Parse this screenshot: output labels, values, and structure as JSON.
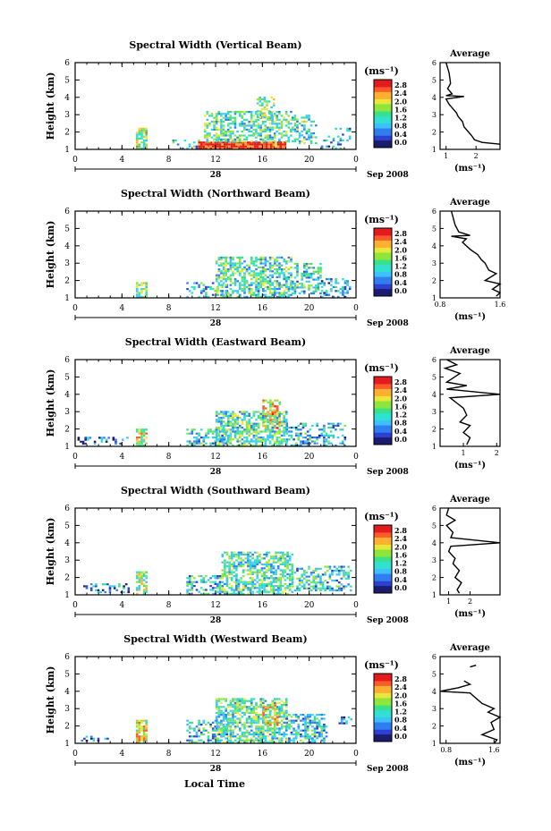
{
  "figure": {
    "xlabel": "Local Time",
    "date_suffix": "Sep 2008",
    "day_label": "28",
    "ylabel": "Height (km)",
    "unit": "(ms⁻¹)",
    "avg_title": "Average"
  },
  "colormap": [
    "#1a1a6e",
    "#2c3fd0",
    "#2f7ff0",
    "#3cc0ff",
    "#30e0d0",
    "#39e28a",
    "#8fe63a",
    "#e8e83a",
    "#ffb030",
    "#ff5a2a",
    "#e41a1c"
  ],
  "chart_data": [
    {
      "type": "heatmap",
      "title": "Spectral Width (Vertical Beam)",
      "x_ticks": [
        "0",
        "4",
        "8",
        "12",
        "16",
        "20",
        "0"
      ],
      "y_ticks": [
        "1",
        "2",
        "3",
        "4",
        "5",
        "6"
      ],
      "xlim": [
        0,
        24
      ],
      "ylim": [
        1,
        6
      ],
      "colorbar_ticks": [
        "0.0",
        "0.4",
        "0.8",
        "1.2",
        "1.6",
        "2.0",
        "2.4",
        "2.8"
      ],
      "colorbar_range": [
        0,
        2.8
      ],
      "blobs": [
        {
          "x0": 5.2,
          "x1": 6.0,
          "y0": 1.0,
          "y1": 2.2,
          "density": 0.8,
          "mean": 1.6
        },
        {
          "x0": 8.3,
          "x1": 12.5,
          "y0": 1.0,
          "y1": 1.5,
          "density": 0.25,
          "mean": 1.0
        },
        {
          "x0": 10.5,
          "x1": 18.0,
          "y0": 1.0,
          "y1": 1.45,
          "density": 1.0,
          "mean": 2.7
        },
        {
          "x0": 11.0,
          "x1": 18.5,
          "y0": 1.4,
          "y1": 3.2,
          "density": 0.55,
          "mean": 1.3
        },
        {
          "x0": 15.5,
          "x1": 17.0,
          "y0": 2.8,
          "y1": 4.0,
          "density": 0.35,
          "mean": 1.4
        },
        {
          "x0": 18.5,
          "x1": 20.5,
          "y0": 1.3,
          "y1": 2.9,
          "density": 0.45,
          "mean": 1.2
        },
        {
          "x0": 21.0,
          "x1": 23.5,
          "y0": 1.0,
          "y1": 2.2,
          "density": 0.2,
          "mean": 0.9
        }
      ],
      "avg": {
        "x_ticks": [
          "1",
          "2"
        ],
        "xlim": [
          0.8,
          2.8
        ],
        "points": [
          [
            1.0,
            6.0
          ],
          [
            1.1,
            5.4
          ],
          [
            1.15,
            4.8
          ],
          [
            1.05,
            4.5
          ],
          [
            1.2,
            4.2
          ],
          [
            1.0,
            4.1
          ],
          [
            1.6,
            4.05
          ],
          [
            1.0,
            3.9
          ],
          [
            1.1,
            3.6
          ],
          [
            1.2,
            3.4
          ],
          [
            1.35,
            3.1
          ],
          [
            1.4,
            2.9
          ],
          [
            1.55,
            2.6
          ],
          [
            1.6,
            2.3
          ],
          [
            1.7,
            2.1
          ],
          [
            1.85,
            1.8
          ],
          [
            1.95,
            1.55
          ],
          [
            2.2,
            1.4
          ],
          [
            2.8,
            1.3
          ]
        ]
      }
    },
    {
      "type": "heatmap",
      "title": "Spectral Width (Northward Beam)",
      "x_ticks": [
        "0",
        "4",
        "8",
        "12",
        "16",
        "20",
        "0"
      ],
      "y_ticks": [
        "1",
        "2",
        "3",
        "4",
        "5",
        "6"
      ],
      "xlim": [
        0,
        24
      ],
      "ylim": [
        1,
        6
      ],
      "colorbar_ticks": [
        "0.0",
        "0.4",
        "0.8",
        "1.2",
        "1.6",
        "2.0",
        "2.4",
        "2.8"
      ],
      "colorbar_range": [
        0,
        2.8
      ],
      "blobs": [
        {
          "x0": 5.2,
          "x1": 6.0,
          "y0": 1.0,
          "y1": 1.9,
          "density": 0.7,
          "mean": 1.4
        },
        {
          "x0": 9.5,
          "x1": 13.0,
          "y0": 1.0,
          "y1": 1.8,
          "density": 0.35,
          "mean": 1.0
        },
        {
          "x0": 12.0,
          "x1": 18.5,
          "y0": 1.0,
          "y1": 3.3,
          "density": 0.6,
          "mean": 1.2
        },
        {
          "x0": 18.5,
          "x1": 21.0,
          "y0": 1.2,
          "y1": 3.0,
          "density": 0.5,
          "mean": 1.1
        },
        {
          "x0": 21.0,
          "x1": 23.5,
          "y0": 1.0,
          "y1": 2.1,
          "density": 0.3,
          "mean": 0.8
        }
      ],
      "avg": {
        "x_ticks": [
          "0.8",
          "1.6"
        ],
        "xlim": [
          0.8,
          1.6
        ],
        "points": [
          [
            0.95,
            6.0
          ],
          [
            1.0,
            5.2
          ],
          [
            1.05,
            4.8
          ],
          [
            1.2,
            4.6
          ],
          [
            0.95,
            4.55
          ],
          [
            1.15,
            4.4
          ],
          [
            1.1,
            4.2
          ],
          [
            1.2,
            3.8
          ],
          [
            1.3,
            3.5
          ],
          [
            1.35,
            3.2
          ],
          [
            1.4,
            3.0
          ],
          [
            1.45,
            2.6
          ],
          [
            1.55,
            2.4
          ],
          [
            1.4,
            2.0
          ],
          [
            1.6,
            1.8
          ],
          [
            1.5,
            1.5
          ],
          [
            1.6,
            1.3
          ],
          [
            1.55,
            1.1
          ]
        ]
      }
    },
    {
      "type": "heatmap",
      "title": "Spectral Width (Eastward Beam)",
      "x_ticks": [
        "0",
        "4",
        "8",
        "12",
        "16",
        "20",
        "0"
      ],
      "y_ticks": [
        "1",
        "2",
        "3",
        "4",
        "5",
        "6"
      ],
      "xlim": [
        0,
        24
      ],
      "ylim": [
        1,
        6
      ],
      "colorbar_ticks": [
        "0.0",
        "0.4",
        "0.8",
        "1.2",
        "1.6",
        "2.0",
        "2.4",
        "2.8"
      ],
      "colorbar_range": [
        0,
        2.8
      ],
      "blobs": [
        {
          "x0": 0.2,
          "x1": 4.5,
          "y0": 1.1,
          "y1": 1.5,
          "density": 0.3,
          "mean": 0.6
        },
        {
          "x0": 5.2,
          "x1": 6.0,
          "y0": 1.0,
          "y1": 2.0,
          "density": 0.75,
          "mean": 1.8
        },
        {
          "x0": 9.5,
          "x1": 13.0,
          "y0": 1.0,
          "y1": 2.0,
          "density": 0.4,
          "mean": 1.0
        },
        {
          "x0": 12.0,
          "x1": 18.0,
          "y0": 1.0,
          "y1": 3.0,
          "density": 0.65,
          "mean": 1.3
        },
        {
          "x0": 16.0,
          "x1": 17.5,
          "y0": 2.0,
          "y1": 3.6,
          "density": 0.5,
          "mean": 1.9
        },
        {
          "x0": 18.0,
          "x1": 23.0,
          "y0": 1.0,
          "y1": 2.3,
          "density": 0.4,
          "mean": 0.9
        }
      ],
      "avg": {
        "x_ticks": [
          "1",
          "2"
        ],
        "xlim": [
          0.3,
          2.1
        ],
        "points": [
          [
            0.5,
            6.0
          ],
          [
            0.8,
            5.7
          ],
          [
            0.45,
            5.5
          ],
          [
            0.9,
            5.2
          ],
          [
            0.5,
            4.7
          ],
          [
            1.1,
            4.5
          ],
          [
            0.5,
            4.3
          ],
          [
            2.1,
            4.0
          ],
          [
            0.6,
            3.8
          ],
          [
            0.8,
            3.5
          ],
          [
            1.0,
            3.2
          ],
          [
            1.1,
            2.8
          ],
          [
            0.9,
            2.4
          ],
          [
            1.2,
            2.2
          ],
          [
            1.0,
            1.8
          ],
          [
            1.2,
            1.5
          ],
          [
            1.1,
            1.1
          ]
        ]
      }
    },
    {
      "type": "heatmap",
      "title": "Spectral Width (Southward Beam)",
      "x_ticks": [
        "0",
        "4",
        "8",
        "12",
        "16",
        "20",
        "0"
      ],
      "y_ticks": [
        "1",
        "2",
        "3",
        "4",
        "5",
        "6"
      ],
      "xlim": [
        0,
        24
      ],
      "ylim": [
        1,
        6
      ],
      "colorbar_ticks": [
        "0.0",
        "0.4",
        "0.8",
        "1.2",
        "1.6",
        "2.0",
        "2.4",
        "2.8"
      ],
      "colorbar_range": [
        0,
        2.8
      ],
      "blobs": [
        {
          "x0": 0.5,
          "x1": 4.5,
          "y0": 1.1,
          "y1": 1.6,
          "density": 0.3,
          "mean": 0.7
        },
        {
          "x0": 5.2,
          "x1": 6.0,
          "y0": 1.0,
          "y1": 2.3,
          "density": 0.7,
          "mean": 1.6
        },
        {
          "x0": 9.5,
          "x1": 13.0,
          "y0": 1.0,
          "y1": 2.1,
          "density": 0.4,
          "mean": 1.0
        },
        {
          "x0": 12.5,
          "x1": 18.5,
          "y0": 1.0,
          "y1": 3.4,
          "density": 0.6,
          "mean": 1.3
        },
        {
          "x0": 18.5,
          "x1": 23.5,
          "y0": 1.2,
          "y1": 2.6,
          "density": 0.5,
          "mean": 1.1
        }
      ],
      "avg": {
        "x_ticks": [
          "1",
          "2"
        ],
        "xlim": [
          0.6,
          3.4
        ],
        "points": [
          [
            1.0,
            6.0
          ],
          [
            0.9,
            5.6
          ],
          [
            1.3,
            5.3
          ],
          [
            0.9,
            5.0
          ],
          [
            1.2,
            4.6
          ],
          [
            1.1,
            4.3
          ],
          [
            3.4,
            4.0
          ],
          [
            1.1,
            3.8
          ],
          [
            1.0,
            3.5
          ],
          [
            1.3,
            3.1
          ],
          [
            1.2,
            2.8
          ],
          [
            1.5,
            2.4
          ],
          [
            1.3,
            2.0
          ],
          [
            1.6,
            1.7
          ],
          [
            1.4,
            1.3
          ],
          [
            1.5,
            1.1
          ]
        ]
      }
    },
    {
      "type": "heatmap",
      "title": "Spectral Width (Westward Beam)",
      "x_ticks": [
        "0",
        "4",
        "8",
        "12",
        "16",
        "20",
        "0"
      ],
      "y_ticks": [
        "1",
        "2",
        "3",
        "4",
        "5",
        "6"
      ],
      "xlim": [
        0,
        24
      ],
      "ylim": [
        1,
        6
      ],
      "colorbar_ticks": [
        "0.0",
        "0.4",
        "0.8",
        "1.2",
        "1.6",
        "2.0",
        "2.4",
        "2.8"
      ],
      "colorbar_range": [
        0,
        2.8
      ],
      "blobs": [
        {
          "x0": 0.3,
          "x1": 3.0,
          "y0": 1.1,
          "y1": 1.4,
          "density": 0.3,
          "mean": 0.6
        },
        {
          "x0": 5.2,
          "x1": 6.0,
          "y0": 1.0,
          "y1": 2.3,
          "density": 0.8,
          "mean": 1.8
        },
        {
          "x0": 9.5,
          "x1": 13.0,
          "y0": 1.0,
          "y1": 2.3,
          "density": 0.45,
          "mean": 1.0
        },
        {
          "x0": 12.0,
          "x1": 18.0,
          "y0": 1.0,
          "y1": 3.5,
          "density": 0.65,
          "mean": 1.3
        },
        {
          "x0": 16.0,
          "x1": 17.3,
          "y0": 2.0,
          "y1": 3.2,
          "density": 0.5,
          "mean": 1.9
        },
        {
          "x0": 18.0,
          "x1": 21.5,
          "y0": 1.0,
          "y1": 2.6,
          "density": 0.5,
          "mean": 1.0
        },
        {
          "x0": 22.5,
          "x1": 23.5,
          "y0": 2.1,
          "y1": 2.5,
          "density": 0.5,
          "mean": 0.7
        }
      ],
      "avg": {
        "x_ticks": [
          "0.8",
          "1.6"
        ],
        "xlim": [
          0.7,
          1.7
        ],
        "points": [
          [
            1.1,
            4.6
          ],
          [
            1.2,
            4.4
          ],
          [
            1.0,
            4.2
          ],
          [
            0.7,
            4.0
          ],
          [
            1.2,
            3.9
          ],
          [
            1.3,
            3.6
          ],
          [
            1.4,
            3.3
          ],
          [
            1.6,
            3.0
          ],
          [
            1.5,
            2.8
          ],
          [
            1.7,
            2.5
          ],
          [
            1.55,
            2.2
          ],
          [
            1.6,
            1.8
          ],
          [
            1.4,
            1.5
          ],
          [
            1.65,
            1.2
          ],
          [
            1.6,
            1.0
          ]
        ],
        "extra_segment": [
          [
            1.2,
            5.4
          ],
          [
            1.3,
            5.5
          ]
        ]
      }
    }
  ]
}
